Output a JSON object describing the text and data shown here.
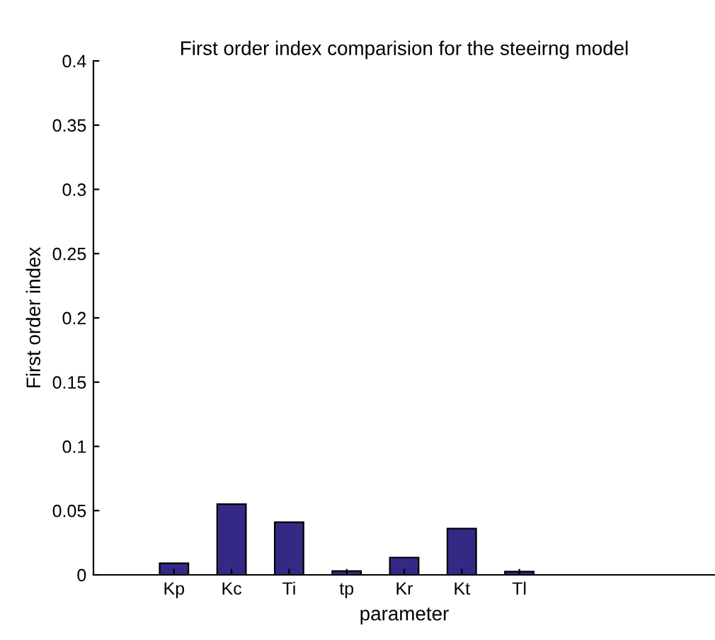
{
  "chart_data": {
    "type": "bar",
    "title": "First order index comparision for the steeirng model",
    "xlabel": "parameter",
    "ylabel": "First order index",
    "categories": [
      "Kp",
      "Kc",
      "Ti",
      "tp",
      "Kr",
      "Kt",
      "Tl"
    ],
    "values": [
      0.009,
      0.055,
      0.041,
      0.003,
      0.0135,
      0.036,
      0.0025
    ],
    "color": "#342a86",
    "ylim": [
      0,
      0.4
    ],
    "yticks": [
      0,
      0.05,
      0.1,
      0.15,
      0.2,
      0.25,
      0.3,
      0.35,
      0.4
    ],
    "grid": false,
    "legend": false
  }
}
